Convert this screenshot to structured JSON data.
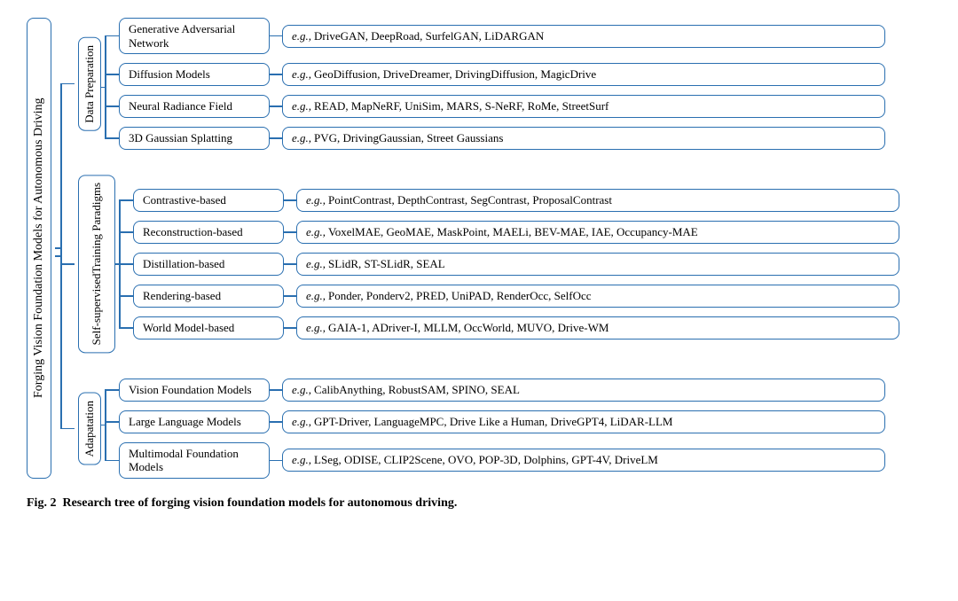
{
  "root": "Forging Vision Foundation Models for Autonomous Driving",
  "caption_prefix": "Fig. 2",
  "caption_text": "Research tree of forging vision foundation models for autonomous driving.",
  "colors": {
    "border": "#2a6fb0",
    "text": "#000000",
    "background": "#ffffff"
  },
  "font": {
    "family": "Times New Roman",
    "body_size_pt": 13,
    "caption_size_pt": 14
  },
  "groups": [
    {
      "label": "Data Preparation",
      "children": [
        {
          "method": "Generative Adversarial Network",
          "examples": "DriveGAN, DeepRoad, SurfelGAN, LiDARGAN"
        },
        {
          "method": "Diffusion Models",
          "examples": "GeoDiffusion, DriveDreamer, DrivingDiffusion, MagicDrive"
        },
        {
          "method": "Neural Radiance Field",
          "examples": "READ, MapNeRF, UniSim, MARS, S-NeRF, RoMe, StreetSurf"
        },
        {
          "method": "3D Gaussian Splatting",
          "examples": "PVG, DrivingGaussian, Street Gaussians"
        }
      ]
    },
    {
      "label": "Self-supervised Training Paradigms",
      "two_line": true,
      "children": [
        {
          "method": "Contrastive-based",
          "examples": "PointContrast, DepthContrast, SegContrast, ProposalContrast"
        },
        {
          "method": "Reconstruction-based",
          "examples": "VoxelMAE, GeoMAE, MaskPoint, MAELi, BEV-MAE, IAE, Occupancy-MAE"
        },
        {
          "method": "Distillation-based",
          "examples": "SLidR, ST-SLidR, SEAL"
        },
        {
          "method": "Rendering-based",
          "examples": "Ponder, Ponderv2, PRED, UniPAD, RenderOcc, SelfOcc"
        },
        {
          "method": "World Model-based",
          "examples": "GAIA-1, ADriver-I, MLLM, OccWorld, MUVO, Drive-WM"
        }
      ]
    },
    {
      "label": "Adapatation",
      "children": [
        {
          "method": "Vision Foundation Models",
          "examples": "CalibAnything, RobustSAM, SPINO, SEAL"
        },
        {
          "method": "Large Language Models",
          "examples": "GPT-Driver, LanguageMPC, Drive Like a Human, DriveGPT4, LiDAR-LLM"
        },
        {
          "method": "Multimodal Foundation Models",
          "examples": "LSeg, ODISE, CLIP2Scene, OVO, POP-3D, Dolphins, GPT-4V, DriveLM"
        }
      ]
    }
  ]
}
